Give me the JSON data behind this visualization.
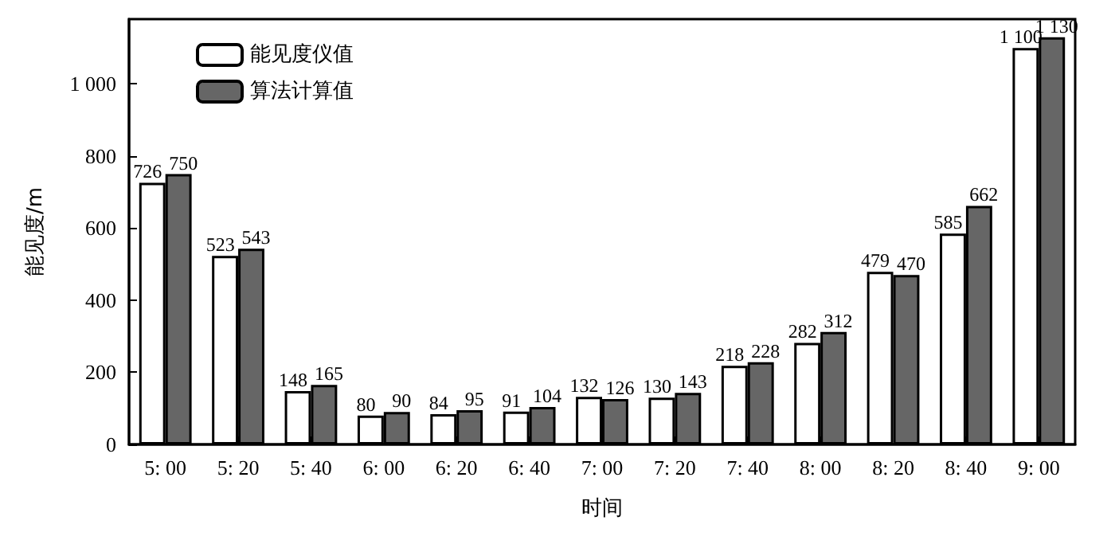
{
  "chart_data": {
    "type": "bar",
    "xlabel": "时间",
    "ylabel": "能见度/m",
    "categories": [
      "5: 00",
      "5: 20",
      "5: 40",
      "6: 00",
      "6: 20",
      "6: 40",
      "7: 00",
      "7: 20",
      "7: 40",
      "8: 00",
      "8: 20",
      "8: 40",
      "9: 00"
    ],
    "series": [
      {
        "name": "能见度仪值",
        "color": "#ffffff",
        "values": [
          726,
          523,
          148,
          80,
          84,
          91,
          132,
          130,
          218,
          282,
          479,
          585,
          1100
        ],
        "value_labels": [
          "726",
          "523",
          "148",
          "80",
          "84",
          "91",
          "132",
          "130",
          "218",
          "282",
          "479",
          "585",
          "1 100"
        ]
      },
      {
        "name": "算法计算值",
        "color": "#666666",
        "values": [
          750,
          543,
          165,
          90,
          95,
          104,
          126,
          143,
          228,
          312,
          470,
          662,
          1130
        ],
        "value_labels": [
          "750",
          "543",
          "165",
          "90",
          "95",
          "104",
          "126",
          "143",
          "228",
          "312",
          "470",
          "662",
          "1 130"
        ]
      }
    ],
    "ylim": [
      0,
      1180
    ],
    "yticks": [
      0,
      200,
      400,
      600,
      800,
      {
        "value": 1000,
        "label": "1 000"
      }
    ],
    "grid": false,
    "legend": "top left"
  }
}
